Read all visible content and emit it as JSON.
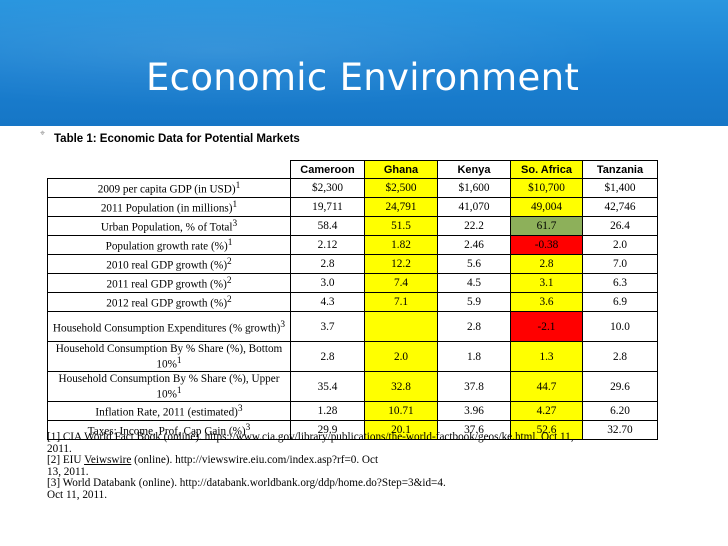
{
  "slide": {
    "title": "Economic Environment"
  },
  "table": {
    "caption": "Table 1: Economic Data for Potential Markets",
    "columns": [
      "Cameroon",
      "Ghana",
      "Kenya",
      "So. Africa",
      "Tanzania"
    ],
    "rows": [
      {
        "label": "2009 per capita GDP (in USD)",
        "sup": "1",
        "values": [
          "$2,300",
          "$2,500",
          "$1,600",
          "$10,700",
          "$1,400"
        ]
      },
      {
        "label": "2011 Population (in millions)",
        "sup": "1",
        "values": [
          "19,711",
          "24,791",
          "41,070",
          "49,004",
          "42,746"
        ]
      },
      {
        "label": "Urban Population, % of Total",
        "sup": "3",
        "values": [
          "58.4",
          "51.5",
          "22.2",
          "61.7",
          "26.4"
        ]
      },
      {
        "label": "Population growth rate (%)",
        "sup": "1",
        "values": [
          "2.12",
          "1.82",
          "2.46",
          "-0.38",
          "2.0"
        ]
      },
      {
        "label": "2010 real GDP growth (%)",
        "sup": "2",
        "values": [
          "2.8",
          "12.2",
          "5.6",
          "2.8",
          "7.0"
        ]
      },
      {
        "label": "2011 real GDP growth (%)",
        "sup": "2",
        "values": [
          "3.0",
          "7.4",
          "4.5",
          "3.1",
          "6.3"
        ]
      },
      {
        "label": "2012 real GDP growth (%)",
        "sup": "2",
        "values": [
          "4.3",
          "7.1",
          "5.9",
          "3.6",
          "6.9"
        ]
      },
      {
        "label": "Household Consumption Expenditures (% growth)",
        "sup": "3",
        "values": [
          "3.7",
          "",
          "2.8",
          "-2.1",
          "10.0"
        ]
      },
      {
        "label": "Household Consumption By % Share (%), Bottom 10%",
        "sup": "1",
        "values": [
          "2.8",
          "2.0",
          "1.8",
          "1.3",
          "2.8"
        ]
      },
      {
        "label": "Household Consumption By % Share (%), Upper 10%",
        "sup": "1",
        "values": [
          "35.4",
          "32.8",
          "37.8",
          "44.7",
          "29.6"
        ]
      },
      {
        "label": "Inflation Rate, 2011 (estimated)",
        "sup": "3",
        "values": [
          "1.28",
          "10.71",
          "3.96",
          "4.27",
          "6.20"
        ]
      },
      {
        "label": "Taxes: Income, Prof, Cap Gain (%)",
        "sup": "3",
        "values": [
          "29.9",
          "20.1",
          "37.6",
          "52.6",
          "32.70"
        ]
      }
    ]
  },
  "footnotes": {
    "ref1_a": "[1] CIA World Fact Book (online). https://www.cia.gov/library/publications/the-world-factbook/geos/ke.html.  Oct 11,",
    "ref1_b": "2011.",
    "ref2_a_pre": "[2] EIU ",
    "ref2_a_link": "Veiwswire",
    "ref2_a_post": " (online). http://viewswire.eiu.com/index.asp?rf=0.  Oct",
    "ref2_b": "13, 2011.",
    "ref3_a": "[3] World Databank (online).  http://databank.worldbank.org/ddp/home.do?Step=3&id=4.",
    "ref3_b": "Oct 11, 2011."
  },
  "colors": {
    "header": "#1a7fd0",
    "highlight_yellow": "#ffff00",
    "highlight_green": "#8db05a",
    "highlight_red": "#ff0000"
  }
}
